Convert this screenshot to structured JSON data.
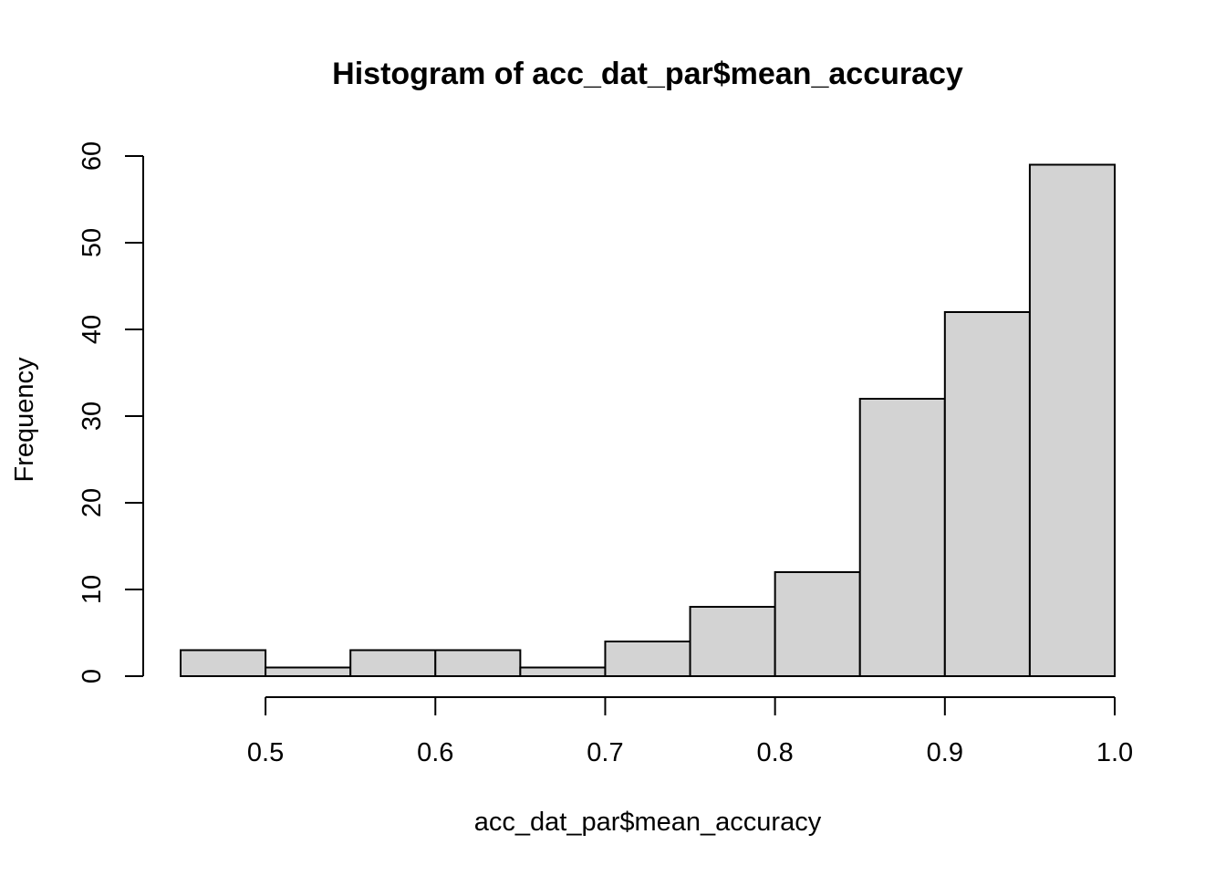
{
  "chart_data": {
    "type": "bar",
    "title": "Histogram of acc_dat_par$mean_accuracy",
    "xlabel": "acc_dat_par$mean_accuracy",
    "ylabel": "Frequency",
    "bin_edges": [
      0.45,
      0.5,
      0.55,
      0.6,
      0.65,
      0.7,
      0.75,
      0.8,
      0.85,
      0.9,
      0.95,
      1.0
    ],
    "values": [
      3,
      1,
      3,
      3,
      1,
      4,
      8,
      12,
      32,
      42,
      59
    ],
    "xlim": [
      0.45,
      1.0
    ],
    "ylim": [
      0,
      60
    ],
    "x_ticks": [
      0.5,
      0.6,
      0.7,
      0.8,
      0.9,
      1.0
    ],
    "x_tick_labels": [
      "0.5",
      "0.6",
      "0.7",
      "0.8",
      "0.9",
      "1.0"
    ],
    "y_ticks": [
      0,
      10,
      20,
      30,
      40,
      50,
      60
    ],
    "y_tick_labels": [
      "0",
      "10",
      "20",
      "30",
      "40",
      "50",
      "60"
    ],
    "bar_color": "#d3d3d3",
    "border_color": "#000000",
    "grid": false,
    "legend": "none"
  }
}
